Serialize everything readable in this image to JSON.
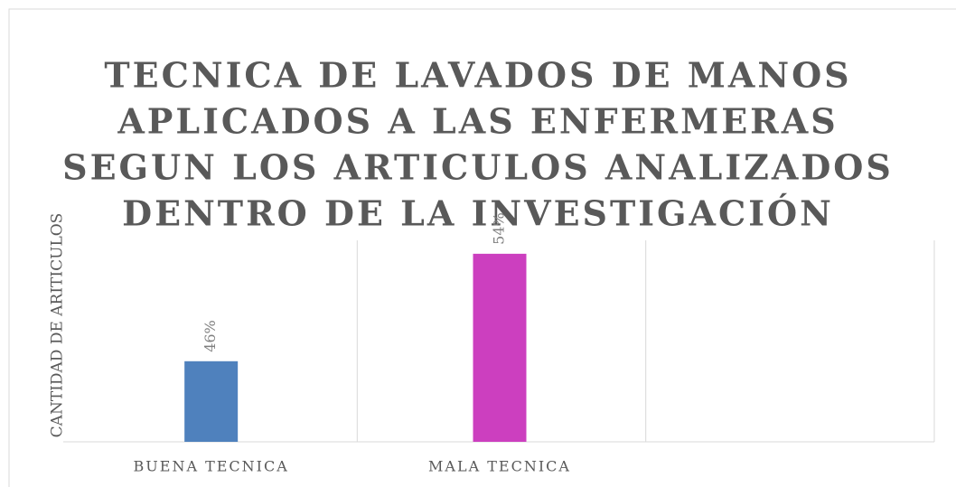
{
  "chart_data": {
    "type": "bar",
    "title": [
      "TECNICA DE LAVADOS DE MANOS",
      "APLICADOS A LAS ENFERMERAS",
      "SEGUN LOS ARTICULOS ANALIZADOS",
      "DENTRO DE LA INVESTIGACIÓN"
    ],
    "y_label": "CANTIDAD DE ARITICULOS",
    "categories": [
      "BUENA TECNICA",
      "MALA TECNICA",
      null
    ],
    "values": [
      46,
      54,
      null
    ],
    "value_labels": [
      "46%",
      "54%",
      null
    ],
    "colors": [
      "#4f81bd",
      "#cc3fbf"
    ],
    "ylim": [
      40,
      55
    ]
  }
}
